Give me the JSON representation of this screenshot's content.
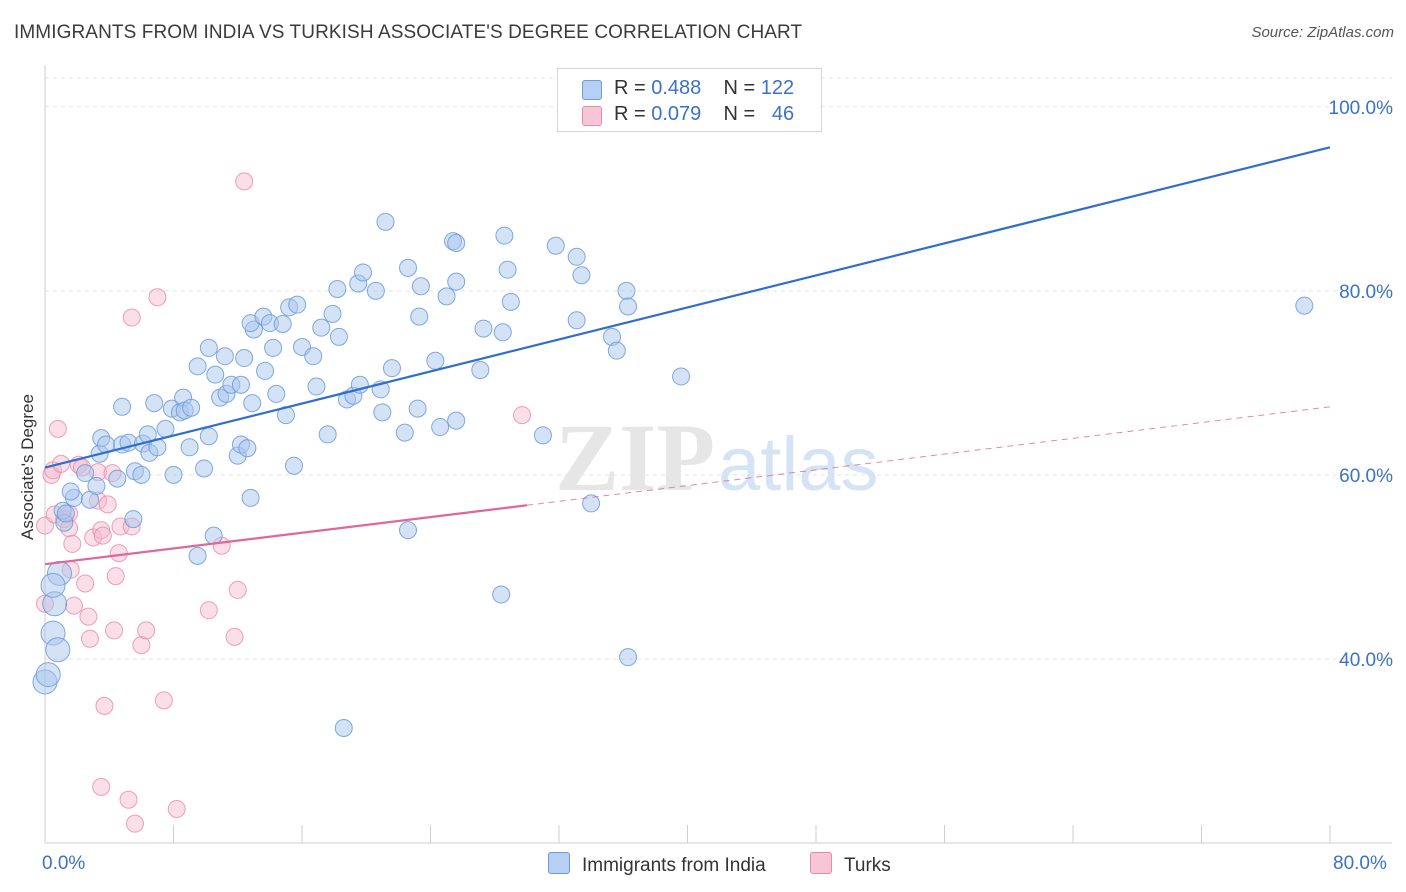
{
  "header": {
    "title": "IMMIGRANTS FROM INDIA VS TURKISH ASSOCIATE'S DEGREE CORRELATION CHART",
    "source": "Source: ZipAtlas.com"
  },
  "colors": {
    "india_fill": "#a9c6ee",
    "india_stroke": "#6b9bd8",
    "india_line": "#2f6fcb",
    "turks_fill": "#f5b8cb",
    "turks_stroke": "#e88aa8",
    "turks_line": "#e0679a",
    "axis_label": "#3b72c8"
  },
  "legend": {
    "rows": [
      {
        "r_label": "R =",
        "r_value": "0.488",
        "n_label": "N =",
        "n_value": "122"
      },
      {
        "r_label": "R =",
        "r_value": "0.079",
        "n_label": "N =",
        "n_value": "46"
      }
    ]
  },
  "watermark": {
    "zip": "ZIP",
    "atlas": "atlas"
  },
  "chart_data": {
    "type": "scatter",
    "title": "IMMIGRANTS FROM INDIA VS TURKISH ASSOCIATE'S DEGREE CORRELATION CHART",
    "xlabel": "",
    "ylabel": "Associate's Degree",
    "xlim": [
      0,
      80
    ],
    "ylim": [
      20,
      104
    ],
    "x_tick_labels": [
      "0.0%",
      "80.0%"
    ],
    "y_ticks": [
      40,
      60,
      80,
      100
    ],
    "y_tick_labels": [
      "40.0%",
      "60.0%",
      "80.0%",
      "100.0%"
    ],
    "grid": true,
    "series": [
      {
        "name": "Immigrants from India",
        "r": 0.488,
        "n": 122,
        "trend": {
          "x0": 0,
          "y0": 60.8,
          "x1": 80,
          "y1": 95.6
        },
        "points": [
          [
            0,
            37.5
          ],
          [
            0.5,
            42.8
          ],
          [
            0.6,
            46.0
          ],
          [
            0.9,
            49.3
          ],
          [
            1.2,
            54.8
          ],
          [
            1.1,
            56.1
          ],
          [
            1.3,
            55.8
          ],
          [
            1.8,
            57.5
          ],
          [
            1.6,
            58.2
          ],
          [
            2.8,
            57.3
          ],
          [
            2.5,
            60.2
          ],
          [
            3.2,
            58.8
          ],
          [
            4.5,
            59.6
          ],
          [
            3.4,
            62.3
          ],
          [
            3.5,
            64.0
          ],
          [
            3.8,
            63.3
          ],
          [
            4.8,
            63.3
          ],
          [
            5.2,
            63.5
          ],
          [
            5.6,
            60.4
          ],
          [
            6.0,
            60.0
          ],
          [
            6.1,
            63.4
          ],
          [
            5.5,
            55.2
          ],
          [
            6.4,
            64.4
          ],
          [
            6.5,
            62.4
          ],
          [
            7.0,
            63.0
          ],
          [
            7.5,
            65.0
          ],
          [
            8.0,
            60.0
          ],
          [
            4.8,
            67.4
          ],
          [
            6.8,
            67.8
          ],
          [
            7.9,
            67.2
          ],
          [
            8.4,
            66.8
          ],
          [
            8.6,
            68.4
          ],
          [
            8.7,
            67.0
          ],
          [
            9.1,
            67.3
          ],
          [
            9.0,
            63.0
          ],
          [
            9.5,
            71.8
          ],
          [
            9.5,
            51.2
          ],
          [
            9.9,
            60.7
          ],
          [
            10.2,
            64.2
          ],
          [
            10.2,
            73.8
          ],
          [
            10.6,
            70.9
          ],
          [
            10.5,
            53.4
          ],
          [
            10.9,
            68.4
          ],
          [
            11.3,
            68.8
          ],
          [
            11.2,
            72.9
          ],
          [
            11.6,
            69.8
          ],
          [
            12.2,
            69.8
          ],
          [
            12.0,
            62.1
          ],
          [
            12.2,
            63.3
          ],
          [
            12.6,
            62.9
          ],
          [
            12.9,
            67.8
          ],
          [
            12.8,
            57.5
          ],
          [
            12.4,
            72.7
          ],
          [
            13.7,
            71.3
          ],
          [
            13.0,
            75.8
          ],
          [
            12.8,
            76.5
          ],
          [
            13.6,
            77.2
          ],
          [
            14.0,
            76.5
          ],
          [
            14.2,
            73.8
          ],
          [
            14.8,
            76.4
          ],
          [
            15.2,
            78.2
          ],
          [
            14.4,
            68.8
          ],
          [
            15.0,
            66.5
          ],
          [
            15.7,
            78.5
          ],
          [
            15.5,
            61.0
          ],
          [
            16.0,
            73.9
          ],
          [
            16.7,
            72.9
          ],
          [
            16.9,
            69.6
          ],
          [
            17.2,
            76.0
          ],
          [
            17.6,
            64.4
          ],
          [
            17.9,
            77.5
          ],
          [
            18.3,
            75.0
          ],
          [
            18.2,
            80.2
          ],
          [
            18.8,
            68.2
          ],
          [
            19.2,
            68.6
          ],
          [
            19.5,
            80.8
          ],
          [
            19.6,
            69.8
          ],
          [
            19.8,
            82.0
          ],
          [
            20.6,
            80.0
          ],
          [
            20.9,
            69.3
          ],
          [
            21.0,
            66.8
          ],
          [
            21.2,
            87.5
          ],
          [
            21.6,
            71.6
          ],
          [
            22.6,
            82.5
          ],
          [
            22.4,
            64.6
          ],
          [
            22.6,
            54.0
          ],
          [
            23.2,
            67.2
          ],
          [
            23.3,
            77.2
          ],
          [
            24.3,
            72.4
          ],
          [
            23.4,
            80.5
          ],
          [
            25.0,
            79.4
          ],
          [
            24.6,
            65.2
          ],
          [
            25.4,
            85.4
          ],
          [
            25.6,
            81.0
          ],
          [
            25.6,
            65.9
          ],
          [
            25.6,
            85.2
          ],
          [
            27.1,
            71.4
          ],
          [
            27.3,
            75.9
          ],
          [
            28.5,
            75.5
          ],
          [
            28.6,
            86.0
          ],
          [
            28.8,
            82.3
          ],
          [
            29.0,
            78.8
          ],
          [
            28.4,
            47.0
          ],
          [
            31.0,
            64.3
          ],
          [
            31.8,
            84.9
          ],
          [
            33.1,
            76.8
          ],
          [
            33.1,
            83.7
          ],
          [
            33.4,
            81.7
          ],
          [
            34.0,
            56.9
          ],
          [
            35.3,
            75.0
          ],
          [
            35.6,
            73.5
          ],
          [
            36.2,
            80.0
          ],
          [
            36.3,
            78.3
          ],
          [
            36.3,
            40.2
          ],
          [
            39.6,
            70.7
          ],
          [
            0.2,
            38.3
          ],
          [
            0.8,
            41.0
          ],
          [
            18.6,
            32.5
          ],
          [
            0.5,
            48.0
          ],
          [
            78.4,
            78.4
          ]
        ]
      },
      {
        "name": "Turks",
        "r": 0.079,
        "n": 46,
        "trend_solid": {
          "x0": 0,
          "y0": 50.3,
          "x1": 30,
          "y1": 56.7
        },
        "trend_dashed": {
          "x0": 30,
          "y0": 56.7,
          "x1": 80,
          "y1": 67.4
        },
        "points": [
          [
            0,
            54.5
          ],
          [
            0,
            46.0
          ],
          [
            0.4,
            60.0
          ],
          [
            0.5,
            60.5
          ],
          [
            0.6,
            55.7
          ],
          [
            0.8,
            65.0
          ],
          [
            1.0,
            61.2
          ],
          [
            1.2,
            55.2
          ],
          [
            1.5,
            55.8
          ],
          [
            1.5,
            54.2
          ],
          [
            1.7,
            52.5
          ],
          [
            1.6,
            49.7
          ],
          [
            1.8,
            45.8
          ],
          [
            2.1,
            61.1
          ],
          [
            2.3,
            60.8
          ],
          [
            2.5,
            48.2
          ],
          [
            2.7,
            44.6
          ],
          [
            2.8,
            42.2
          ],
          [
            3.0,
            53.2
          ],
          [
            3.3,
            57.2
          ],
          [
            3.5,
            54.0
          ],
          [
            3.6,
            53.4
          ],
          [
            3.3,
            60.3
          ],
          [
            3.9,
            56.8
          ],
          [
            4.2,
            60.2
          ],
          [
            4.3,
            43.1
          ],
          [
            4.4,
            49.0
          ],
          [
            4.6,
            51.5
          ],
          [
            4.7,
            54.4
          ],
          [
            5.4,
            54.4
          ],
          [
            5.4,
            77.1
          ],
          [
            6.0,
            41.5
          ],
          [
            6.3,
            43.1
          ],
          [
            7.0,
            79.3
          ],
          [
            7.4,
            35.5
          ],
          [
            8.2,
            23.7
          ],
          [
            10.2,
            45.3
          ],
          [
            11.0,
            52.3
          ],
          [
            11.8,
            42.4
          ],
          [
            12.0,
            47.5
          ],
          [
            12.4,
            91.9
          ],
          [
            29.7,
            66.5
          ],
          [
            3.7,
            34.9
          ],
          [
            3.5,
            26.1
          ],
          [
            5.2,
            24.7
          ],
          [
            5.6,
            22.1
          ]
        ]
      }
    ]
  },
  "bottom_legend": {
    "items": [
      "Immigrants from India",
      "Turks"
    ]
  }
}
